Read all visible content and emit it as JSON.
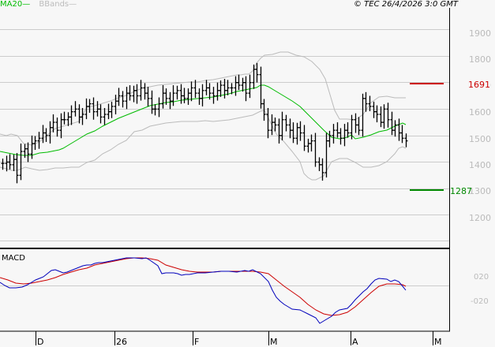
{
  "header": {
    "legend_ma": "MA20",
    "legend_bb": "BBands",
    "copyright": "© TEC 26/4/2026 3:0 GMT"
  },
  "colors": {
    "background": "#f7f7f7",
    "grid": "#cccccc",
    "ma20": "#00bb00",
    "bbands": "#bbbbbb",
    "resistance": "#cc0000",
    "support": "#008800",
    "macd_line": "#0000bb",
    "signal_line": "#cc0000",
    "bars": "#000000"
  },
  "price_axis": {
    "ticks": [
      "1900",
      "1800",
      "1700",
      "1600",
      "1500",
      "1400",
      "1300",
      "1200"
    ]
  },
  "levels": {
    "resistance": "1691",
    "support": "1287"
  },
  "macd_panel": {
    "title": "MACD",
    "ticks": [
      "020",
      "-020"
    ]
  },
  "time_axis": {
    "labels": [
      "D",
      "26",
      "F",
      "M",
      "A",
      "M"
    ]
  },
  "chart_data": [
    {
      "type": "ohlc",
      "title": "Price with MA20 and Bollinger Bands",
      "ylim": [
        1050,
        1980
      ],
      "yticks": [
        1200,
        1300,
        1400,
        1500,
        1600,
        1700,
        1800,
        1900
      ],
      "xlabels": [
        "D",
        "26",
        "F",
        "M",
        "A",
        "M"
      ],
      "series": [
        {
          "name": "MA20",
          "color": "#00bb00"
        },
        {
          "name": "BBands",
          "color": "#bbbbbb"
        }
      ],
      "annotations": [
        {
          "label": "1691",
          "type": "resistance",
          "value": 1691
        },
        {
          "label": "1287",
          "type": "support",
          "value": 1287
        }
      ],
      "close": [
        1395,
        1400,
        1390,
        1410,
        1350,
        1440,
        1450,
        1430,
        1470,
        1480,
        1490,
        1510,
        1500,
        1530,
        1550,
        1520,
        1560,
        1560,
        1570,
        1590,
        1600,
        1570,
        1580,
        1610,
        1620,
        1590,
        1600,
        1570,
        1580,
        1590,
        1610,
        1630,
        1650,
        1630,
        1660,
        1650,
        1670,
        1650,
        1680,
        1660,
        1640,
        1600,
        1600,
        1620,
        1660,
        1640,
        1630,
        1660,
        1670,
        1650,
        1640,
        1660,
        1680,
        1660,
        1640,
        1670,
        1680,
        1660,
        1650,
        1670,
        1690,
        1670,
        1680,
        1680,
        1700,
        1690,
        1700,
        1660,
        1700,
        1750,
        1730,
        1620,
        1580,
        1520,
        1550,
        1540,
        1500,
        1560,
        1540,
        1520,
        1490,
        1530,
        1510,
        1460,
        1470,
        1480,
        1400,
        1390,
        1360,
        1480,
        1500,
        1520,
        1510,
        1490,
        1520,
        1510,
        1560,
        1540,
        1520,
        1640,
        1620,
        1610,
        1590,
        1580,
        1550,
        1600,
        1560,
        1520,
        1540,
        1510,
        1490,
        1480
      ],
      "ma20": [
        1480,
        1475,
        1472,
        1475,
        1480,
        1485,
        1495,
        1505,
        1515,
        1525,
        1535,
        1545,
        1555,
        1565,
        1575,
        1580,
        1585,
        1590,
        1590,
        1595,
        1600,
        1605,
        1612,
        1620,
        1625,
        1628,
        1632,
        1635,
        1638,
        1640,
        1645,
        1648,
        1650,
        1652,
        1655,
        1658,
        1660,
        1662,
        1665,
        1668,
        1680,
        1690,
        1700,
        1705,
        1690,
        1670,
        1655,
        1640,
        1625,
        1610,
        1590,
        1575,
        1560,
        1545,
        1525,
        1515,
        1505,
        1500,
        1500,
        1500,
        1510,
        1520,
        1525,
        1530,
        1535,
        1545,
        1550,
        1555,
        1555
      ],
      "bb_upper": [
        1550,
        1545,
        1540,
        1550,
        1580,
        1610,
        1625,
        1640,
        1660,
        1670,
        1680,
        1690,
        1700,
        1705,
        1710,
        1718,
        1720,
        1725,
        1730,
        1735,
        1740,
        1760,
        1800,
        1820,
        1830,
        1820,
        1780,
        1700,
        1600,
        1580,
        1580,
        1590,
        1620,
        1650,
        1650,
        1645,
        1645
      ],
      "bb_lower": [
        1330,
        1340,
        1360,
        1380,
        1390,
        1400,
        1420,
        1440,
        1460,
        1470,
        1480,
        1500,
        1510,
        1520,
        1530,
        1540,
        1540,
        1550,
        1580,
        1590,
        1600,
        1560,
        1480,
        1420,
        1380,
        1360,
        1380,
        1420,
        1410,
        1400,
        1410,
        1430,
        1470,
        1470,
        1460
      ],
      "macd": [
        5,
        -8,
        -6,
        8,
        18,
        20,
        35,
        25,
        32,
        42,
        45,
        40,
        40,
        44,
        48,
        50,
        48,
        50,
        35,
        28,
        32,
        28,
        32,
        30,
        36,
        34,
        38,
        36,
        40,
        32,
        36,
        40,
        10,
        -30,
        -45,
        -55,
        -62,
        -60,
        -58,
        -65,
        -72,
        -55,
        -42,
        -35,
        -25,
        -12,
        8,
        20,
        22,
        20,
        15,
        5
      ],
      "signal": [
        10,
        5,
        2,
        5,
        10,
        18,
        26,
        30,
        34,
        38,
        42,
        44,
        46,
        48,
        48,
        45,
        40,
        36,
        34,
        32,
        32,
        32,
        34,
        34,
        36,
        36,
        36,
        36,
        38,
        36,
        34,
        30,
        20,
        0,
        -20,
        -35,
        -45,
        -55,
        -62,
        -66,
        -65,
        -60,
        -52,
        -40,
        -25,
        -10,
        5,
        15,
        20,
        20,
        15,
        12
      ]
    }
  ]
}
